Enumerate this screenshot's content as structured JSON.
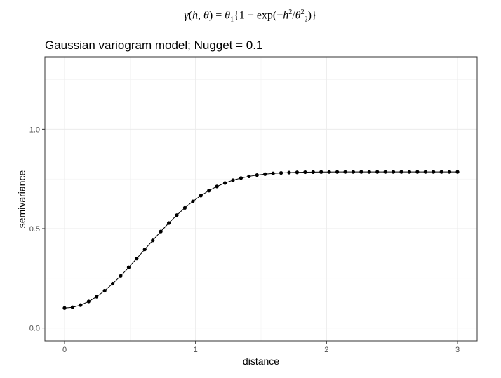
{
  "formula": {
    "gamma": "γ",
    "open_args": "(",
    "h": "h",
    "comma": ", ",
    "theta": "θ",
    "eq": ") = ",
    "theta1": "θ",
    "sub1": "1",
    "brace_open": "{1 − exp(−",
    "h2": "h",
    "sup2": "2",
    "slash": "/",
    "theta2": "θ",
    "sup2b": "2",
    "sub2": "2",
    "close": ")}"
  },
  "chart_data": {
    "type": "line",
    "title": "Gaussian variogram model; Nugget = 0.1",
    "xlabel": "distance",
    "ylabel": "semivariance",
    "xlim": [
      -0.15,
      3.15
    ],
    "ylim": [
      -0.065,
      1.365
    ],
    "x_ticks": [
      0,
      1,
      2,
      3
    ],
    "x_tick_labels": [
      "0",
      "1",
      "2",
      "3"
    ],
    "y_ticks": [
      0.0,
      0.5,
      1.0
    ],
    "y_tick_labels": [
      "0.0",
      "0.5",
      "1.0"
    ],
    "grid": true,
    "markers": true,
    "series": [
      {
        "x": [
          0.0,
          0.0612,
          0.1224,
          0.1837,
          0.2449,
          0.3061,
          0.3673,
          0.4286,
          0.4898,
          0.551,
          0.6122,
          0.6735,
          0.7347,
          0.7959,
          0.8571,
          0.9184,
          0.9796,
          1.0408,
          1.102,
          1.1633,
          1.2245,
          1.2857,
          1.3469,
          1.4082,
          1.4694,
          1.5306,
          1.5918,
          1.6531,
          1.7143,
          1.7755,
          1.8367,
          1.898,
          1.9592,
          2.0204,
          2.0816,
          2.1429,
          2.2041,
          2.2653,
          2.3265,
          2.3878,
          2.449,
          2.5102,
          2.5714,
          2.6327,
          2.6939,
          2.7551,
          2.8163,
          2.8776,
          2.9388,
          3.0
        ],
        "y": [
          0.1,
          0.1037,
          0.1147,
          0.1326,
          0.1571,
          0.1874,
          0.2227,
          0.2622,
          0.3048,
          0.3495,
          0.3952,
          0.4408,
          0.4854,
          0.5281,
          0.568,
          0.6046,
          0.6375,
          0.6664,
          0.6913,
          0.7123,
          0.7296,
          0.7436,
          0.7547,
          0.7632,
          0.7697,
          0.7745,
          0.778,
          0.7804,
          0.7821,
          0.7833,
          0.7841,
          0.7846,
          0.785,
          0.7852,
          0.7853,
          0.7854,
          0.7854,
          0.7855,
          0.7855,
          0.7855,
          0.7855,
          0.7855,
          0.7855,
          0.7855,
          0.7855,
          0.7855,
          0.7855,
          0.7855,
          0.7855,
          0.7855
        ]
      }
    ]
  }
}
